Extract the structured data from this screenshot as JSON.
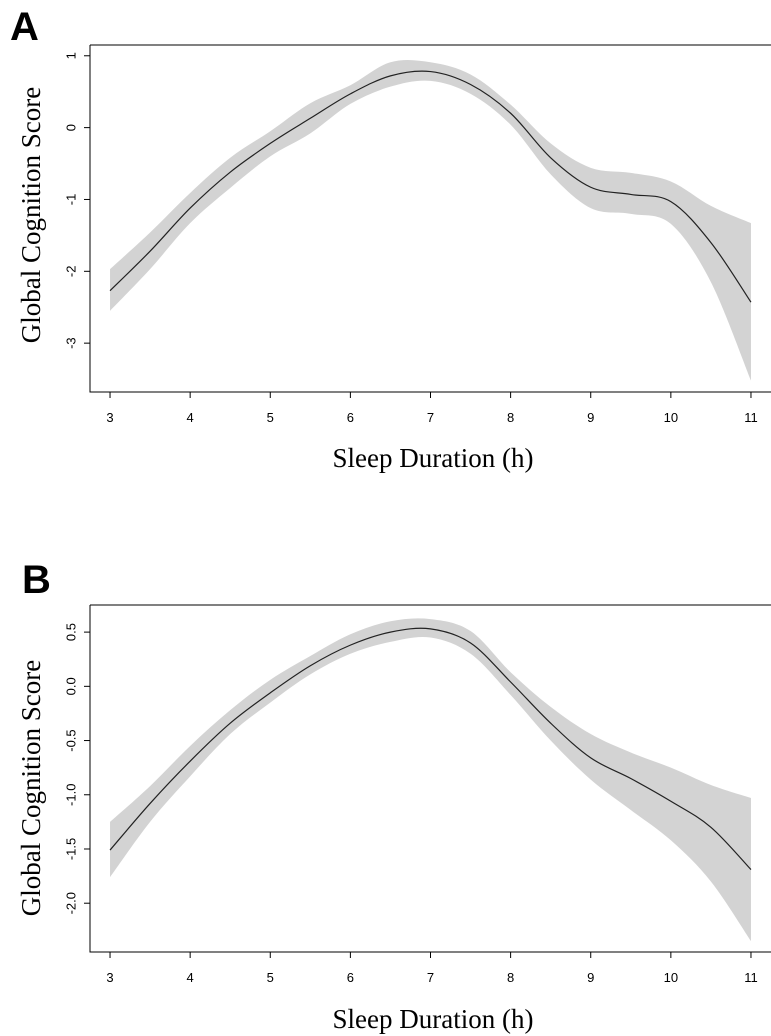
{
  "chart_data": [
    {
      "panel": "A",
      "type": "line",
      "xlabel": "Sleep Duration (h)",
      "ylabel": "Global Cognition Score",
      "xticks": [
        3,
        4,
        5,
        6,
        7,
        8,
        9,
        10,
        11
      ],
      "yticks": [
        -3,
        -2,
        -1,
        0,
        1
      ],
      "xlim": [
        2.75,
        11.25
      ],
      "ylim": [
        -3.68,
        1.15
      ],
      "grid": false,
      "series": [
        {
          "x": [
            3,
            3.5,
            4,
            4.5,
            5,
            5.5,
            6,
            6.5,
            7,
            7.5,
            8,
            8.5,
            9,
            9.5,
            10,
            10.5,
            11
          ],
          "y": [
            -2.27,
            -1.72,
            -1.12,
            -0.62,
            -0.22,
            0.13,
            0.47,
            0.72,
            0.78,
            0.6,
            0.2,
            -0.42,
            -0.83,
            -0.93,
            -1.03,
            -1.6,
            -2.43
          ],
          "lower": [
            -2.55,
            -1.97,
            -1.33,
            -0.84,
            -0.4,
            -0.08,
            0.33,
            0.57,
            0.65,
            0.47,
            0.04,
            -0.65,
            -1.12,
            -1.2,
            -1.34,
            -2.15,
            -3.52
          ],
          "upper": [
            -1.97,
            -1.46,
            -0.91,
            -0.42,
            -0.05,
            0.34,
            0.59,
            0.91,
            0.91,
            0.74,
            0.32,
            -0.22,
            -0.56,
            -0.63,
            -0.75,
            -1.09,
            -1.33
          ]
        }
      ],
      "colors": {
        "line": "#222222",
        "band": "#d3d3d3"
      }
    },
    {
      "panel": "B",
      "type": "line",
      "xlabel": "Sleep Duration (h)",
      "ylabel": "Global Cognition Score",
      "xticks": [
        3,
        4,
        5,
        6,
        7,
        8,
        9,
        10,
        11
      ],
      "yticks": [
        -2.0,
        -1.5,
        -1.0,
        -0.5,
        0.0,
        0.5
      ],
      "ytick_labels": [
        "-2.0",
        "-1.5",
        "-1.0",
        "-0.5",
        "0.0",
        "0.5"
      ],
      "xlim": [
        2.75,
        11.25
      ],
      "ylim": [
        -2.45,
        0.75
      ],
      "grid": false,
      "series": [
        {
          "x": [
            3,
            3.5,
            4,
            4.5,
            5,
            5.5,
            6,
            6.5,
            7,
            7.5,
            8,
            8.5,
            9,
            9.5,
            10,
            10.5,
            11
          ],
          "y": [
            -1.51,
            -1.08,
            -0.69,
            -0.34,
            -0.06,
            0.19,
            0.38,
            0.5,
            0.53,
            0.4,
            0.04,
            -0.34,
            -0.66,
            -0.85,
            -1.06,
            -1.3,
            -1.69
          ],
          "lower": [
            -1.76,
            -1.25,
            -0.83,
            -0.44,
            -0.15,
            0.11,
            0.3,
            0.41,
            0.45,
            0.3,
            -0.08,
            -0.5,
            -0.86,
            -1.14,
            -1.42,
            -1.8,
            -2.35
          ],
          "upper": [
            -1.25,
            -0.92,
            -0.55,
            -0.22,
            0.06,
            0.28,
            0.48,
            0.6,
            0.62,
            0.51,
            0.13,
            -0.19,
            -0.44,
            -0.61,
            -0.75,
            -0.91,
            -1.03
          ]
        }
      ],
      "colors": {
        "line": "#222222",
        "band": "#d3d3d3"
      }
    }
  ]
}
